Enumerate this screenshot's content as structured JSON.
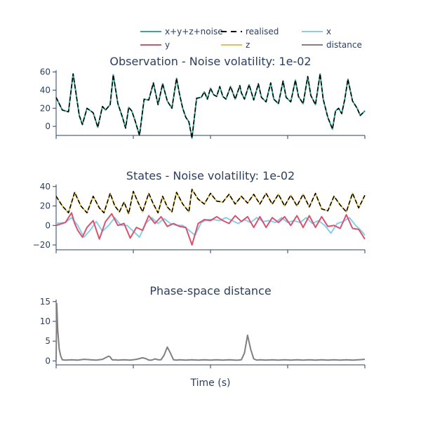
{
  "legend": [
    {
      "label": "x+y+z+noise",
      "color": "#3aa896",
      "dash": "solid"
    },
    {
      "label": "realised",
      "color": "#000000",
      "dash": "dash"
    },
    {
      "label": "x",
      "color": "#87ceeb",
      "dash": "solid"
    },
    {
      "label": "y",
      "color": "#d9536f",
      "dash": "solid"
    },
    {
      "label": "z",
      "color": "#e6c04f",
      "dash": "solid"
    },
    {
      "label": "distance",
      "color": "#808080",
      "dash": "solid"
    }
  ],
  "xlabel": "Time (s)",
  "chart_data": [
    {
      "type": "line",
      "title": "Observation - Noise volatility: 1e-02",
      "ylim": [
        -10,
        62
      ],
      "yticks": [
        0,
        20,
        40,
        60
      ],
      "xlim": [
        0,
        1
      ],
      "series": [
        {
          "name": "x+y+z+noise",
          "color": "#3aa896",
          "x": [
            0,
            0.02,
            0.04,
            0.055,
            0.065,
            0.075,
            0.085,
            0.1,
            0.12,
            0.135,
            0.15,
            0.16,
            0.175,
            0.185,
            0.2,
            0.215,
            0.225,
            0.235,
            0.245,
            0.255,
            0.27,
            0.285,
            0.3,
            0.315,
            0.33,
            0.345,
            0.36,
            0.375,
            0.39,
            0.4,
            0.41,
            0.42,
            0.43,
            0.44,
            0.455,
            0.47,
            0.48,
            0.49,
            0.5,
            0.51,
            0.52,
            0.53,
            0.54,
            0.55,
            0.565,
            0.58,
            0.595,
            0.6,
            0.61,
            0.625,
            0.64,
            0.655,
            0.665,
            0.68,
            0.695,
            0.705,
            0.72,
            0.735,
            0.745,
            0.76,
            0.775,
            0.785,
            0.8,
            0.815,
            0.825,
            0.84,
            0.855,
            0.865,
            0.88,
            0.895,
            0.905,
            0.915,
            0.925,
            0.935,
            0.945,
            0.96,
            0.975,
            0.985,
            1.0
          ],
          "values": [
            32,
            18,
            16,
            58,
            35,
            12,
            2,
            20,
            15,
            -1,
            22,
            18,
            24,
            57,
            25,
            10,
            -2,
            21,
            17,
            7,
            -10,
            30,
            29,
            48,
            24,
            47,
            28,
            20,
            53,
            35,
            20,
            10,
            5,
            -13,
            31,
            32,
            38,
            30,
            42,
            35,
            33,
            44,
            33,
            30,
            44,
            30,
            45,
            37,
            30,
            46,
            29,
            47,
            32,
            27,
            48,
            30,
            25,
            50,
            32,
            27,
            51,
            33,
            25,
            55,
            34,
            24,
            58,
            30,
            10,
            -3,
            17,
            20,
            14,
            30,
            52,
            28,
            20,
            12,
            17
          ]
        },
        {
          "name": "realised",
          "color": "#000000",
          "x": [
            0,
            0.02,
            0.04,
            0.055,
            0.065,
            0.075,
            0.085,
            0.1,
            0.12,
            0.135,
            0.15,
            0.16,
            0.175,
            0.185,
            0.2,
            0.215,
            0.225,
            0.235,
            0.245,
            0.255,
            0.27,
            0.285,
            0.3,
            0.315,
            0.33,
            0.345,
            0.36,
            0.375,
            0.39,
            0.4,
            0.41,
            0.42,
            0.43,
            0.44,
            0.455,
            0.47,
            0.48,
            0.49,
            0.5,
            0.51,
            0.52,
            0.53,
            0.54,
            0.55,
            0.565,
            0.58,
            0.595,
            0.6,
            0.61,
            0.625,
            0.64,
            0.655,
            0.665,
            0.68,
            0.695,
            0.705,
            0.72,
            0.735,
            0.745,
            0.76,
            0.775,
            0.785,
            0.8,
            0.815,
            0.825,
            0.84,
            0.855,
            0.865,
            0.88,
            0.895,
            0.905,
            0.915,
            0.925,
            0.935,
            0.945,
            0.96,
            0.975,
            0.985,
            1.0
          ],
          "values": [
            32,
            18,
            16,
            58,
            35,
            12,
            2,
            20,
            15,
            -1,
            22,
            18,
            24,
            57,
            25,
            10,
            -2,
            21,
            17,
            7,
            -10,
            30,
            29,
            48,
            24,
            47,
            28,
            20,
            53,
            35,
            20,
            10,
            5,
            -13,
            31,
            32,
            38,
            30,
            42,
            35,
            33,
            44,
            33,
            30,
            44,
            30,
            45,
            37,
            30,
            46,
            29,
            47,
            32,
            27,
            48,
            30,
            25,
            50,
            32,
            27,
            51,
            33,
            25,
            55,
            34,
            24,
            58,
            30,
            10,
            -3,
            17,
            20,
            14,
            30,
            52,
            28,
            20,
            12,
            17
          ]
        }
      ]
    },
    {
      "type": "line",
      "title": "States - Noise volatility: 1e-02",
      "ylim": [
        -25,
        42
      ],
      "yticks": [
        -20,
        0,
        20,
        40
      ],
      "xlim": [
        0,
        1
      ],
      "series": [
        {
          "name": "z",
          "color": "#e6c04f",
          "x": [
            0,
            0.02,
            0.04,
            0.06,
            0.08,
            0.1,
            0.12,
            0.14,
            0.155,
            0.175,
            0.19,
            0.205,
            0.22,
            0.235,
            0.25,
            0.265,
            0.28,
            0.3,
            0.315,
            0.33,
            0.345,
            0.36,
            0.375,
            0.39,
            0.41,
            0.43,
            0.44,
            0.46,
            0.48,
            0.5,
            0.52,
            0.54,
            0.56,
            0.58,
            0.6,
            0.62,
            0.64,
            0.66,
            0.68,
            0.7,
            0.72,
            0.74,
            0.76,
            0.78,
            0.8,
            0.82,
            0.84,
            0.86,
            0.88,
            0.9,
            0.92,
            0.94,
            0.96,
            0.98,
            1.0
          ],
          "values": [
            30,
            20,
            13,
            34,
            20,
            13,
            30,
            18,
            13,
            33,
            20,
            14,
            24,
            12,
            35,
            24,
            14,
            33,
            22,
            13,
            30,
            19,
            14,
            34,
            22,
            14,
            37,
            27,
            22,
            33,
            25,
            24,
            32,
            22,
            30,
            23,
            32,
            22,
            33,
            22,
            32,
            20,
            31,
            20,
            32,
            19,
            33,
            17,
            15,
            30,
            21,
            14,
            33,
            18,
            31
          ]
        },
        {
          "name": "x",
          "color": "#87ceeb",
          "x": [
            0,
            0.03,
            0.05,
            0.07,
            0.09,
            0.11,
            0.13,
            0.15,
            0.17,
            0.19,
            0.21,
            0.23,
            0.25,
            0.27,
            0.29,
            0.31,
            0.33,
            0.35,
            0.37,
            0.39,
            0.41,
            0.43,
            0.45,
            0.47,
            0.49,
            0.51,
            0.53,
            0.55,
            0.57,
            0.59,
            0.61,
            0.63,
            0.65,
            0.67,
            0.69,
            0.71,
            0.73,
            0.75,
            0.77,
            0.79,
            0.81,
            0.83,
            0.85,
            0.87,
            0.89,
            0.91,
            0.93,
            0.95,
            0.97,
            0.99,
            1.0
          ],
          "values": [
            2,
            3,
            8,
            0,
            -12,
            -5,
            4,
            -6,
            0,
            8,
            0,
            0,
            -6,
            -12,
            2,
            8,
            2,
            7,
            2,
            0,
            0,
            -5,
            -10,
            3,
            6,
            6,
            5,
            8,
            5,
            2,
            6,
            3,
            8,
            4,
            5,
            3,
            8,
            3,
            5,
            3,
            8,
            2,
            5,
            0,
            -8,
            2,
            4,
            8,
            0,
            -6,
            -10
          ]
        },
        {
          "name": "y",
          "color": "#d9536f",
          "x": [
            0,
            0.03,
            0.05,
            0.06,
            0.07,
            0.085,
            0.1,
            0.12,
            0.14,
            0.16,
            0.18,
            0.2,
            0.22,
            0.24,
            0.26,
            0.28,
            0.3,
            0.32,
            0.34,
            0.36,
            0.38,
            0.4,
            0.42,
            0.44,
            0.46,
            0.48,
            0.5,
            0.52,
            0.54,
            0.56,
            0.58,
            0.6,
            0.62,
            0.64,
            0.66,
            0.68,
            0.7,
            0.72,
            0.74,
            0.76,
            0.78,
            0.8,
            0.82,
            0.84,
            0.86,
            0.88,
            0.9,
            0.92,
            0.94,
            0.96,
            0.98,
            1.0
          ],
          "values": [
            0,
            3,
            13,
            2,
            -5,
            -12,
            -2,
            5,
            -14,
            4,
            12,
            0,
            2,
            -13,
            -2,
            -5,
            10,
            2,
            9,
            -1,
            2,
            -1,
            -2,
            -20,
            2,
            6,
            5,
            9,
            5,
            2,
            10,
            4,
            9,
            -2,
            9,
            -2,
            8,
            3,
            9,
            0,
            10,
            -2,
            10,
            -2,
            9,
            -1,
            0,
            -3,
            11,
            -3,
            -4,
            -14
          ]
        },
        {
          "name": "realised",
          "color": "#000000",
          "x": [
            0,
            0.02,
            0.04,
            0.06,
            0.08,
            0.1,
            0.12,
            0.14,
            0.155,
            0.175,
            0.19,
            0.205,
            0.22,
            0.235,
            0.25,
            0.265,
            0.28,
            0.3,
            0.315,
            0.33,
            0.345,
            0.36,
            0.375,
            0.39,
            0.41,
            0.43,
            0.44,
            0.46,
            0.48,
            0.5,
            0.52,
            0.54,
            0.56,
            0.58,
            0.6,
            0.62,
            0.64,
            0.66,
            0.68,
            0.7,
            0.72,
            0.74,
            0.76,
            0.78,
            0.8,
            0.82,
            0.84,
            0.86,
            0.88,
            0.9,
            0.92,
            0.94,
            0.96,
            0.98,
            1.0
          ],
          "values": [
            30,
            20,
            13,
            34,
            20,
            13,
            30,
            18,
            13,
            33,
            20,
            14,
            24,
            12,
            35,
            24,
            14,
            33,
            22,
            13,
            30,
            19,
            14,
            34,
            22,
            14,
            37,
            27,
            22,
            33,
            25,
            24,
            32,
            22,
            30,
            23,
            32,
            22,
            33,
            22,
            32,
            20,
            31,
            20,
            32,
            19,
            33,
            17,
            15,
            30,
            21,
            14,
            33,
            18,
            31
          ]
        }
      ]
    },
    {
      "type": "line",
      "title": "Phase-space distance",
      "ylim": [
        -1,
        15.5
      ],
      "yticks": [
        0,
        5,
        10,
        15
      ],
      "xlim": [
        0,
        1
      ],
      "series": [
        {
          "name": "distance",
          "color": "#808080",
          "x": [
            0,
            0.002,
            0.005,
            0.01,
            0.015,
            0.02,
            0.03,
            0.05,
            0.07,
            0.09,
            0.11,
            0.13,
            0.15,
            0.17,
            0.175,
            0.18,
            0.185,
            0.19,
            0.2,
            0.22,
            0.24,
            0.26,
            0.28,
            0.29,
            0.3,
            0.31,
            0.32,
            0.33,
            0.34,
            0.35,
            0.36,
            0.37,
            0.38,
            0.39,
            0.4,
            0.42,
            0.44,
            0.46,
            0.48,
            0.5,
            0.52,
            0.54,
            0.56,
            0.58,
            0.59,
            0.6,
            0.61,
            0.62,
            0.63,
            0.64,
            0.65,
            0.66,
            0.68,
            0.7,
            0.72,
            0.74,
            0.76,
            0.78,
            0.8,
            0.82,
            0.84,
            0.86,
            0.88,
            0.9,
            0.92,
            0.94,
            0.96,
            0.98,
            1.0
          ],
          "values": [
            0.3,
            14.5,
            8,
            3,
            1.2,
            0.3,
            0.2,
            0.3,
            0.2,
            0.4,
            0.3,
            0.2,
            0.4,
            1.2,
            1.0,
            0.4,
            0.2,
            0.3,
            0.2,
            0.3,
            0.2,
            0.4,
            0.8,
            0.6,
            0.2,
            0.2,
            0.5,
            0.3,
            0.3,
            1.5,
            3.5,
            2,
            0.3,
            0.2,
            0.3,
            0.2,
            0.3,
            0.2,
            0.3,
            0.2,
            0.3,
            0.2,
            0.3,
            0.2,
            0.2,
            0.3,
            2,
            6.5,
            3,
            0.5,
            0.2,
            0.3,
            0.2,
            0.3,
            0.2,
            0.3,
            0.2,
            0.3,
            0.2,
            0.3,
            0.2,
            0.3,
            0.2,
            0.3,
            0.2,
            0.3,
            0.2,
            0.3,
            0.4
          ]
        }
      ]
    }
  ]
}
